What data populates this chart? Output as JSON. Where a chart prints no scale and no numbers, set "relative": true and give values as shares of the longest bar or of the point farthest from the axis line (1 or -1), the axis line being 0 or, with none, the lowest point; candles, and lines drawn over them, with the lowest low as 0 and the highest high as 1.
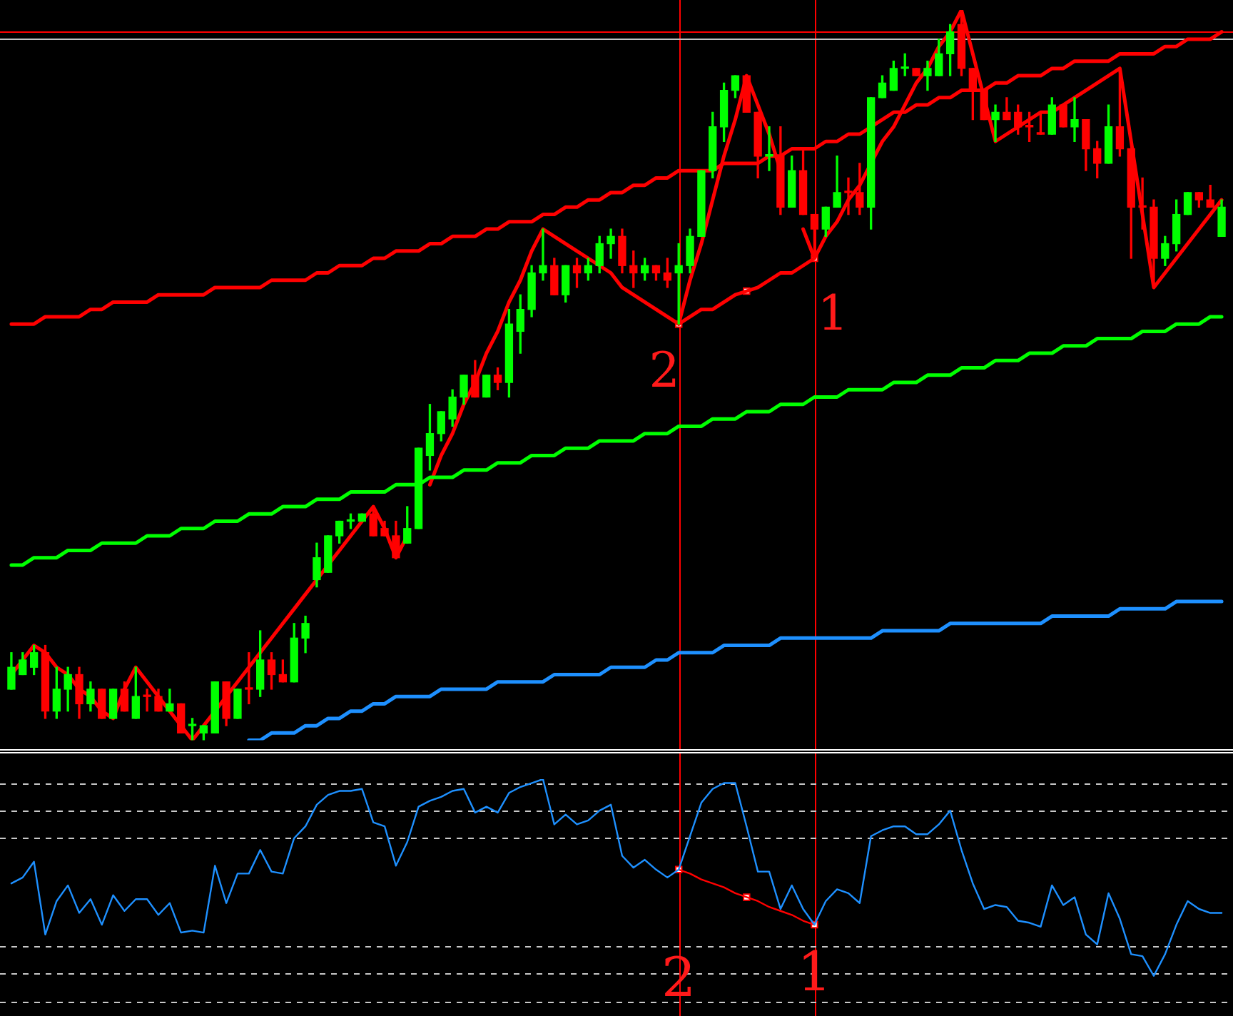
{
  "chart_data": [
    {
      "type": "candlestick",
      "relative": true,
      "categories": [
        null,
        null,
        null,
        null,
        null,
        null,
        null,
        null,
        null,
        null,
        null,
        null,
        null,
        null,
        null,
        null,
        null,
        null,
        null,
        null,
        null,
        null,
        null,
        null,
        null,
        null,
        null,
        null,
        null,
        null,
        null,
        null,
        null,
        null,
        null,
        null,
        null,
        null,
        null,
        null,
        null,
        null,
        null,
        null,
        null,
        null,
        null,
        null,
        null,
        null,
        null,
        null,
        null,
        null,
        null,
        null,
        null,
        null,
        null,
        null,
        null,
        null,
        null,
        null,
        null,
        null,
        null,
        null,
        null,
        null,
        null,
        null,
        null,
        null,
        null,
        null,
        null,
        null,
        null,
        null,
        null,
        null,
        null,
        null,
        null,
        null,
        null,
        null,
        null,
        null,
        null,
        null,
        null,
        null,
        null,
        null,
        null,
        null,
        null,
        null,
        null,
        null,
        null,
        null,
        null,
        null,
        null,
        null
      ],
      "ohlc": [
        [
          0.07,
          0.12,
          0.07,
          0.1
        ],
        [
          0.09,
          0.12,
          0.09,
          0.11
        ],
        [
          0.1,
          0.13,
          0.09,
          0.12
        ],
        [
          0.12,
          0.13,
          0.03,
          0.04
        ],
        [
          0.04,
          0.1,
          0.03,
          0.07
        ],
        [
          0.07,
          0.1,
          0.04,
          0.09
        ],
        [
          0.09,
          0.1,
          0.03,
          0.05
        ],
        [
          0.05,
          0.08,
          0.04,
          0.07
        ],
        [
          0.07,
          0.07,
          0.03,
          0.03
        ],
        [
          0.03,
          0.07,
          0.03,
          0.07
        ],
        [
          0.07,
          0.08,
          0.04,
          0.04
        ],
        [
          0.03,
          0.1,
          0.03,
          0.06
        ],
        [
          0.06,
          0.07,
          0.04,
          0.06
        ],
        [
          0.06,
          0.07,
          0.04,
          0.04
        ],
        [
          0.04,
          0.07,
          0.04,
          0.05
        ],
        [
          0.05,
          0.05,
          0.01,
          0.01
        ],
        [
          0.02,
          0.03,
          0,
          0.02
        ],
        [
          0.01,
          0.02,
          0,
          0.02
        ],
        [
          0.01,
          0.08,
          0.01,
          0.08
        ],
        [
          0.08,
          0.08,
          0.02,
          0.03
        ],
        [
          0.03,
          0.07,
          0.03,
          0.07
        ],
        [
          0.07,
          0.12,
          0.05,
          0.07
        ],
        [
          0.07,
          0.15,
          0.06,
          0.11
        ],
        [
          0.11,
          0.12,
          0.07,
          0.09
        ],
        [
          0.09,
          0.11,
          0.08,
          0.08
        ],
        [
          0.08,
          0.16,
          0.08,
          0.14
        ],
        [
          0.14,
          0.17,
          0.12,
          0.16
        ],
        [
          0.22,
          0.27,
          0.21,
          0.25
        ],
        [
          0.23,
          0.28,
          0.23,
          0.28
        ],
        [
          0.28,
          0.3,
          0.27,
          0.3
        ],
        [
          0.3,
          0.31,
          0.29,
          0.3
        ],
        [
          0.3,
          0.31,
          0.3,
          0.31
        ],
        [
          0.31,
          0.32,
          0.28,
          0.28
        ],
        [
          0.29,
          0.3,
          0.28,
          0.28
        ],
        [
          0.28,
          0.3,
          0.25,
          0.25
        ],
        [
          0.27,
          0.32,
          0.27,
          0.29
        ],
        [
          0.29,
          0.4,
          0.29,
          0.4
        ],
        [
          0.39,
          0.46,
          0.37,
          0.42
        ],
        [
          0.42,
          0.45,
          0.41,
          0.45
        ],
        [
          0.44,
          0.48,
          0.43,
          0.47
        ],
        [
          0.47,
          0.5,
          0.46,
          0.5
        ],
        [
          0.5,
          0.52,
          0.47,
          0.47
        ],
        [
          0.47,
          0.5,
          0.47,
          0.5
        ],
        [
          0.5,
          0.51,
          0.48,
          0.49
        ],
        [
          0.49,
          0.59,
          0.47,
          0.57
        ],
        [
          0.56,
          0.61,
          0.53,
          0.59
        ],
        [
          0.59,
          0.65,
          0.58,
          0.64
        ],
        [
          0.64,
          0.7,
          0.63,
          0.65
        ],
        [
          0.65,
          0.66,
          0.61,
          0.61
        ],
        [
          0.61,
          0.65,
          0.6,
          0.65
        ],
        [
          0.65,
          0.66,
          0.62,
          0.64
        ],
        [
          0.64,
          0.66,
          0.63,
          0.65
        ],
        [
          0.65,
          0.69,
          0.64,
          0.68
        ],
        [
          0.68,
          0.7,
          0.66,
          0.69
        ],
        [
          0.69,
          0.7,
          0.64,
          0.65
        ],
        [
          0.65,
          0.67,
          0.62,
          0.64
        ],
        [
          0.64,
          0.66,
          0.63,
          0.65
        ],
        [
          0.65,
          0.65,
          0.63,
          0.64
        ],
        [
          0.64,
          0.66,
          0.62,
          0.63
        ],
        [
          0.64,
          0.68,
          0.57,
          0.65
        ],
        [
          0.65,
          0.7,
          0.64,
          0.69
        ],
        [
          0.69,
          0.78,
          0.69,
          0.78
        ],
        [
          0.78,
          0.86,
          0.77,
          0.84
        ],
        [
          0.84,
          0.9,
          0.82,
          0.89
        ],
        [
          0.89,
          0.91,
          0.88,
          0.91
        ],
        [
          0.91,
          0.91,
          0.86,
          0.86
        ],
        [
          0.86,
          0.86,
          0.77,
          0.8
        ],
        [
          0.8,
          0.84,
          0.78,
          0.8
        ],
        [
          0.8,
          0.84,
          0.72,
          0.73
        ],
        [
          0.73,
          0.8,
          0.73,
          0.78
        ],
        [
          0.78,
          0.81,
          0.72,
          0.72
        ],
        [
          0.72,
          0.72,
          0.66,
          0.7
        ],
        [
          0.7,
          0.73,
          0.69,
          0.73
        ],
        [
          0.73,
          0.8,
          0.73,
          0.75
        ],
        [
          0.75,
          0.77,
          0.72,
          0.75
        ],
        [
          0.75,
          0.79,
          0.72,
          0.73
        ],
        [
          0.73,
          0.88,
          0.7,
          0.88
        ],
        [
          0.88,
          0.91,
          0.88,
          0.9
        ],
        [
          0.89,
          0.93,
          0.89,
          0.92
        ],
        [
          0.92,
          0.94,
          0.91,
          0.92
        ],
        [
          0.92,
          0.92,
          0.91,
          0.91
        ],
        [
          0.91,
          0.93,
          0.89,
          0.92
        ],
        [
          0.91,
          0.96,
          0.91,
          0.94
        ],
        [
          0.94,
          0.98,
          0.91,
          0.97
        ],
        [
          0.98,
          1,
          0.91,
          0.92
        ],
        [
          0.92,
          0.92,
          0.85,
          0.89
        ],
        [
          0.89,
          0.89,
          0.85,
          0.85
        ],
        [
          0.85,
          0.87,
          0.82,
          0.86
        ],
        [
          0.86,
          0.88,
          0.85,
          0.85
        ],
        [
          0.86,
          0.87,
          0.83,
          0.84
        ],
        [
          0.84,
          0.86,
          0.82,
          0.84
        ],
        [
          0.83,
          0.86,
          0.83,
          0.83
        ],
        [
          0.83,
          0.88,
          0.83,
          0.87
        ],
        [
          0.87,
          0.87,
          0.84,
          0.84
        ],
        [
          0.84,
          0.88,
          0.82,
          0.85
        ],
        [
          0.85,
          0.85,
          0.78,
          0.81
        ],
        [
          0.81,
          0.82,
          0.77,
          0.79
        ],
        [
          0.79,
          0.87,
          0.79,
          0.84
        ],
        [
          0.84,
          0.92,
          0.8,
          0.81
        ],
        [
          0.81,
          0.81,
          0.66,
          0.73
        ],
        [
          0.73,
          0.77,
          0.7,
          0.73
        ],
        [
          0.73,
          0.74,
          0.62,
          0.66
        ],
        [
          0.66,
          0.69,
          0.65,
          0.68
        ],
        [
          0.68,
          0.74,
          0.67,
          0.72
        ],
        [
          0.72,
          0.75,
          0.72,
          0.75
        ],
        [
          0.75,
          0.75,
          0.73,
          0.74
        ],
        [
          0.74,
          0.76,
          0.73,
          0.73
        ],
        [
          0.69,
          0.74,
          0.69,
          0.73
        ]
      ],
      "colors": [
        "#00ff00",
        "#00ff00",
        "#00ff00",
        "#ff0000",
        "#00ff00",
        "#00ff00",
        "#ff0000",
        "#00ff00",
        "#ff0000",
        "#00ff00",
        "#ff0000",
        "#00ff00",
        "#ff0000",
        "#ff0000",
        "#00ff00",
        "#ff0000",
        "#00ff00",
        "#00ff00",
        "#00ff00",
        "#ff0000",
        "#00ff00",
        "#ff0000",
        "#00ff00",
        "#ff0000",
        "#ff0000",
        "#00ff00",
        "#00ff00",
        "#00ff00",
        "#00ff00",
        "#00ff00",
        "#00ff00",
        "#00ff00",
        "#ff0000",
        "#ff0000",
        "#ff0000",
        "#00ff00",
        "#00ff00",
        "#00ff00",
        "#00ff00",
        "#00ff00",
        "#00ff00",
        "#ff0000",
        "#00ff00",
        "#ff0000",
        "#00ff00",
        "#00ff00",
        "#00ff00",
        "#00ff00",
        "#ff0000",
        "#00ff00",
        "#ff0000",
        "#00ff00",
        "#00ff00",
        "#00ff00",
        "#ff0000",
        "#ff0000",
        "#00ff00",
        "#ff0000",
        "#ff0000",
        "#00ff00",
        "#00ff00",
        "#00ff00",
        "#00ff00",
        "#00ff00",
        "#00ff00",
        "#ff0000",
        "#ff0000",
        "#00ff00",
        "#ff0000",
        "#00ff00",
        "#ff0000",
        "#ff0000",
        "#00ff00",
        "#00ff00",
        "#ff0000",
        "#ff0000",
        "#00ff00",
        "#00ff00",
        "#00ff00",
        "#00ff00",
        "#ff0000",
        "#00ff00",
        "#00ff00",
        "#00ff00",
        "#ff0000",
        "#ff0000",
        "#ff0000",
        "#00ff00",
        "#ff0000",
        "#ff0000",
        "#ff0000",
        "#ff0000",
        "#00ff00",
        "#ff0000",
        "#00ff00",
        "#ff0000",
        "#ff0000",
        "#00ff00",
        "#ff0000",
        "#ff0000",
        "#ff0000",
        "#ff0000",
        "#00ff00",
        "#00ff00",
        "#00ff00",
        "#ff0000",
        "#ff0000",
        "#00ff00"
      ],
      "series": [
        {
          "type": "line",
          "color": "#ff0000",
          "values": [
            0.57,
            0.57,
            0.57,
            0.58,
            0.58,
            0.58,
            0.58,
            0.59,
            0.59,
            0.6,
            0.6,
            0.6,
            0.6,
            0.61,
            0.61,
            0.61,
            0.61,
            0.61,
            0.62,
            0.62,
            0.62,
            0.62,
            0.62,
            0.63,
            0.63,
            0.63,
            0.63,
            0.64,
            0.64,
            0.65,
            0.65,
            0.65,
            0.66,
            0.66,
            0.67,
            0.67,
            0.67,
            0.68,
            0.68,
            0.69,
            0.69,
            0.69,
            0.7,
            0.7,
            0.71,
            0.71,
            0.71,
            0.72,
            0.72,
            0.73,
            0.73,
            0.74,
            0.74,
            0.75,
            0.75,
            0.76,
            0.76,
            0.77,
            0.77,
            0.78,
            0.78,
            0.78,
            0.78,
            0.79,
            0.79,
            0.79,
            0.79,
            0.8,
            0.8,
            0.81,
            0.81,
            0.81,
            0.82,
            0.82,
            0.83,
            0.83,
            0.84,
            0.85,
            0.86,
            0.86,
            0.87,
            0.87,
            0.88,
            0.88,
            0.89,
            0.89,
            0.89,
            0.9,
            0.9,
            0.91,
            0.91,
            0.91,
            0.92,
            0.92,
            0.93,
            0.93,
            0.93,
            0.93,
            0.94,
            0.94,
            0.94,
            0.94,
            0.95,
            0.95,
            0.96,
            0.96,
            0.96,
            0.97
          ]
        },
        {
          "type": "line",
          "color": "#00ff00",
          "values": [
            0.24,
            0.24,
            0.25,
            0.25,
            0.25,
            0.26,
            0.26,
            0.26,
            0.27,
            0.27,
            0.27,
            0.27,
            0.28,
            0.28,
            0.28,
            0.29,
            0.29,
            0.29,
            0.3,
            0.3,
            0.3,
            0.31,
            0.31,
            0.31,
            0.32,
            0.32,
            0.32,
            0.33,
            0.33,
            0.33,
            0.34,
            0.34,
            0.34,
            0.34,
            0.35,
            0.35,
            0.35,
            0.36,
            0.36,
            0.36,
            0.37,
            0.37,
            0.37,
            0.38,
            0.38,
            0.38,
            0.39,
            0.39,
            0.39,
            0.4,
            0.4,
            0.4,
            0.41,
            0.41,
            0.41,
            0.41,
            0.42,
            0.42,
            0.42,
            0.43,
            0.43,
            0.43,
            0.44,
            0.44,
            0.44,
            0.45,
            0.45,
            0.45,
            0.46,
            0.46,
            0.46,
            0.47,
            0.47,
            0.47,
            0.48,
            0.48,
            0.48,
            0.48,
            0.49,
            0.49,
            0.49,
            0.5,
            0.5,
            0.5,
            0.51,
            0.51,
            0.51,
            0.52,
            0.52,
            0.52,
            0.53,
            0.53,
            0.53,
            0.54,
            0.54,
            0.54,
            0.55,
            0.55,
            0.55,
            0.55,
            0.56,
            0.56,
            0.56,
            0.57,
            0.57,
            0.57,
            0.58,
            0.58
          ]
        },
        {
          "type": "line",
          "color": "#1e90ff",
          "values": [
            null,
            null,
            null,
            null,
            null,
            null,
            null,
            null,
            null,
            null,
            null,
            null,
            null,
            null,
            null,
            null,
            null,
            null,
            null,
            null,
            null,
            0,
            0,
            0.01,
            0.01,
            0.01,
            0.02,
            0.02,
            0.03,
            0.03,
            0.04,
            0.04,
            0.05,
            0.05,
            0.06,
            0.06,
            0.06,
            0.06,
            0.07,
            0.07,
            0.07,
            0.07,
            0.07,
            0.08,
            0.08,
            0.08,
            0.08,
            0.08,
            0.09,
            0.09,
            0.09,
            0.09,
            0.09,
            0.1,
            0.1,
            0.1,
            0.1,
            0.11,
            0.11,
            0.12,
            0.12,
            0.12,
            0.12,
            0.13,
            0.13,
            0.13,
            0.13,
            0.13,
            0.14,
            0.14,
            0.14,
            0.14,
            0.14,
            0.14,
            0.14,
            0.14,
            0.14,
            0.15,
            0.15,
            0.15,
            0.15,
            0.15,
            0.15,
            0.16,
            0.16,
            0.16,
            0.16,
            0.16,
            0.16,
            0.16,
            0.16,
            0.16,
            0.17,
            0.17,
            0.17,
            0.17,
            0.17,
            0.17,
            0.18,
            0.18,
            0.18,
            0.18,
            0.18,
            0.19,
            0.19,
            0.19,
            0.19,
            0.19
          ]
        },
        {
          "type": "line",
          "color": "#ff0000",
          "values": [
            0.09,
            0.11,
            0.13,
            0.12,
            0.1,
            0.09,
            0.07,
            0.06,
            0.04,
            0.03,
            0.07,
            0.1,
            0.08,
            0.06,
            0.04,
            0.02,
            0,
            0.02,
            0.04,
            0.06,
            0.08,
            0.1,
            0.12,
            0.14,
            0.16,
            0.18,
            0.2,
            0.22,
            0.24,
            0.26,
            0.28,
            0.3,
            0.32,
            0.29,
            0.25,
            0.28,
            null,
            0.35,
            0.39,
            0.42,
            0.46,
            0.49,
            0.53,
            0.56,
            0.6,
            0.63,
            0.67,
            0.7,
            0.69,
            0.68,
            0.67,
            0.66,
            0.65,
            0.64,
            0.62,
            0.61,
            0.6,
            0.59,
            0.58,
            0.57,
            0.63,
            0.68,
            0.74,
            0.8,
            0.85,
            0.91,
            0.87,
            0.83,
            0.78,
            null,
            0.7,
            0.66,
            0.69,
            0.71,
            0.74,
            0.76,
            0.79,
            0.82,
            0.84,
            0.87,
            0.9,
            0.92,
            0.95,
            0.97,
            1,
            0.94,
            0.88,
            0.82,
            0.83,
            0.84,
            0.85,
            0.86,
            0.86,
            0.87,
            0.88,
            0.89,
            0.9,
            0.91,
            0.92,
            0.82,
            0.72,
            0.62,
            0.64,
            0.66,
            0.68,
            0.7,
            0.72,
            0.74
          ]
        },
        {
          "type": "line",
          "color": "#ff0000",
          "values": [
            null,
            null,
            null,
            null,
            null,
            null,
            null,
            null,
            null,
            null,
            null,
            null,
            null,
            null,
            null,
            null,
            null,
            null,
            null,
            null,
            null,
            null,
            null,
            null,
            null,
            null,
            null,
            null,
            null,
            null,
            null,
            null,
            null,
            null,
            null,
            null,
            null,
            null,
            null,
            null,
            null,
            null,
            null,
            null,
            null,
            null,
            null,
            null,
            null,
            null,
            null,
            null,
            null,
            null,
            null,
            null,
            null,
            null,
            null,
            0.57,
            0.58,
            0.59,
            0.59,
            0.6,
            0.61,
            0.615,
            0.62,
            0.63,
            0.64,
            0.64,
            0.65,
            0.66,
            null,
            null,
            null,
            null,
            null,
            null,
            null,
            null,
            null,
            null,
            null,
            null,
            null,
            null,
            null,
            null,
            null,
            null,
            null,
            null,
            null,
            null,
            null,
            null,
            null,
            null,
            null,
            null,
            null,
            null,
            null,
            null,
            null,
            null,
            null,
            null
          ]
        },
        {
          "type": "scatter",
          "color": "#ff0000",
          "marker": "square",
          "values": [
            null,
            null,
            null,
            null,
            null,
            null,
            null,
            null,
            null,
            null,
            null,
            null,
            null,
            null,
            null,
            null,
            null,
            null,
            null,
            null,
            null,
            null,
            null,
            null,
            null,
            null,
            null,
            null,
            null,
            null,
            null,
            null,
            null,
            null,
            null,
            null,
            null,
            null,
            null,
            null,
            null,
            null,
            null,
            null,
            null,
            null,
            null,
            null,
            null,
            null,
            null,
            null,
            null,
            null,
            null,
            null,
            null,
            null,
            null,
            0.57,
            null,
            null,
            null,
            null,
            null,
            0.615,
            null,
            null,
            null,
            null,
            null,
            0.66,
            null,
            null,
            null,
            null,
            null,
            null,
            null,
            null,
            null,
            null,
            null,
            null,
            null,
            null,
            null,
            null,
            null,
            null,
            null,
            null,
            null,
            null,
            null,
            null,
            null,
            null,
            null,
            null,
            null,
            null,
            null,
            null,
            null,
            null,
            null,
            null
          ]
        }
      ],
      "ref_lines": [
        {
          "axis": "y",
          "value": 0.97,
          "color": "#ff0000"
        },
        {
          "axis": "y",
          "value": 0.96,
          "color": "#c0c0c0"
        }
      ],
      "annotations": [
        "2",
        "1"
      ]
    },
    {
      "type": "line",
      "relative": true,
      "categories": [
        null,
        null,
        null,
        null,
        null,
        null,
        null,
        null,
        null,
        null,
        null,
        null,
        null,
        null,
        null,
        null,
        null,
        null,
        null,
        null,
        null,
        null,
        null,
        null,
        null,
        null,
        null,
        null,
        null,
        null,
        null,
        null,
        null,
        null,
        null,
        null,
        null,
        null,
        null,
        null,
        null,
        null,
        null,
        null,
        null,
        null,
        null,
        null,
        null,
        null,
        null,
        null,
        null,
        null,
        null,
        null,
        null,
        null,
        null,
        null,
        null,
        null,
        null,
        null,
        null,
        null,
        null,
        null,
        null,
        null,
        null,
        null,
        null,
        null,
        null,
        null,
        null,
        null,
        null,
        null,
        null,
        null,
        null,
        null,
        null,
        null,
        null,
        null,
        null,
        null,
        null,
        null,
        null,
        null,
        null,
        null,
        null,
        null,
        null,
        null,
        null,
        null,
        null,
        null,
        null,
        null,
        null,
        null
      ],
      "series": [
        {
          "color": "#1e90ff",
          "values": [
            0.47,
            0.5,
            0.58,
            0.21,
            0.38,
            0.46,
            0.32,
            0.39,
            0.26,
            0.41,
            0.33,
            0.39,
            0.39,
            0.31,
            0.37,
            0.22,
            0.23,
            0.22,
            0.56,
            0.37,
            0.52,
            0.52,
            0.64,
            0.53,
            0.52,
            0.7,
            0.76,
            0.87,
            0.92,
            0.94,
            0.94,
            0.95,
            0.78,
            0.76,
            0.56,
            0.68,
            0.86,
            0.89,
            0.91,
            0.94,
            0.95,
            0.83,
            0.86,
            0.83,
            0.93,
            0.96,
            0.98,
            1,
            0.77,
            0.82,
            0.77,
            0.79,
            0.84,
            0.87,
            0.61,
            0.55,
            0.59,
            0.54,
            0.5,
            0.54,
            0.71,
            0.88,
            0.95,
            0.98,
            0.98,
            0.76,
            0.53,
            0.53,
            0.34,
            0.46,
            0.34,
            0.26,
            0.38,
            0.44,
            0.42,
            0.37,
            0.71,
            0.74,
            0.76,
            0.76,
            0.72,
            0.72,
            0.77,
            0.84,
            0.64,
            0.47,
            0.34,
            0.36,
            0.35,
            0.28,
            0.27,
            0.25,
            0.46,
            0.36,
            0.4,
            0.21,
            0.16,
            0.42,
            0.29,
            0.11,
            0.1,
            0,
            0.11,
            0.26,
            0.38,
            0.34,
            0.32,
            0.32
          ]
        },
        {
          "color": "#ff0000",
          "values": [
            null,
            null,
            null,
            null,
            null,
            null,
            null,
            null,
            null,
            null,
            null,
            null,
            null,
            null,
            null,
            null,
            null,
            null,
            null,
            null,
            null,
            null,
            null,
            null,
            null,
            null,
            null,
            null,
            null,
            null,
            null,
            null,
            null,
            null,
            null,
            null,
            null,
            null,
            null,
            null,
            null,
            null,
            null,
            null,
            null,
            null,
            null,
            null,
            null,
            null,
            null,
            null,
            null,
            null,
            null,
            null,
            null,
            null,
            null,
            0.54,
            0.52,
            0.49,
            0.47,
            0.45,
            0.42,
            0.4,
            0.38,
            0.35,
            0.33,
            0.31,
            0.28,
            0.26,
            null,
            null,
            null,
            null,
            null,
            null,
            null,
            null,
            null,
            null,
            null,
            null,
            null,
            null,
            null,
            null,
            null,
            null,
            null,
            null,
            null,
            null,
            null,
            null,
            null,
            null,
            null,
            null,
            null,
            null,
            null,
            null,
            null,
            null,
            null,
            null
          ]
        },
        {
          "type": "scatter",
          "color": "#ff0000",
          "marker": "square",
          "values": [
            null,
            null,
            null,
            null,
            null,
            null,
            null,
            null,
            null,
            null,
            null,
            null,
            null,
            null,
            null,
            null,
            null,
            null,
            null,
            null,
            null,
            null,
            null,
            null,
            null,
            null,
            null,
            null,
            null,
            null,
            null,
            null,
            null,
            null,
            null,
            null,
            null,
            null,
            null,
            null,
            null,
            null,
            null,
            null,
            null,
            null,
            null,
            null,
            null,
            null,
            null,
            null,
            null,
            null,
            null,
            null,
            null,
            null,
            null,
            0.54,
            null,
            null,
            null,
            null,
            null,
            0.4,
            null,
            null,
            null,
            null,
            null,
            0.26,
            null,
            null,
            null,
            null,
            null,
            null,
            null,
            null,
            null,
            null,
            null,
            null,
            null,
            null,
            null,
            null,
            null,
            null,
            null,
            null,
            null,
            null,
            null,
            null,
            null,
            null,
            null,
            null,
            null,
            null,
            null,
            null,
            null,
            null,
            null,
            null
          ]
        }
      ],
      "ref_lines": [
        {
          "axis": "y",
          "value": 0.98,
          "color": "#c8c8c8",
          "line_style": "dashed"
        },
        {
          "axis": "y",
          "value": 0.84,
          "color": "#c8c8c8",
          "line_style": "dashed"
        },
        {
          "axis": "y",
          "value": 0.7,
          "color": "#c8c8c8",
          "line_style": "dashed"
        },
        {
          "axis": "y",
          "value": 0.15,
          "color": "#c8c8c8",
          "line_style": "dashed"
        },
        {
          "axis": "y",
          "value": 0.01,
          "color": "#c8c8c8",
          "line_style": "dashed"
        },
        {
          "axis": "y",
          "value": -0.13,
          "color": "#c8c8c8",
          "line_style": "dashed"
        }
      ],
      "annotations": [
        "2",
        "1"
      ]
    }
  ]
}
